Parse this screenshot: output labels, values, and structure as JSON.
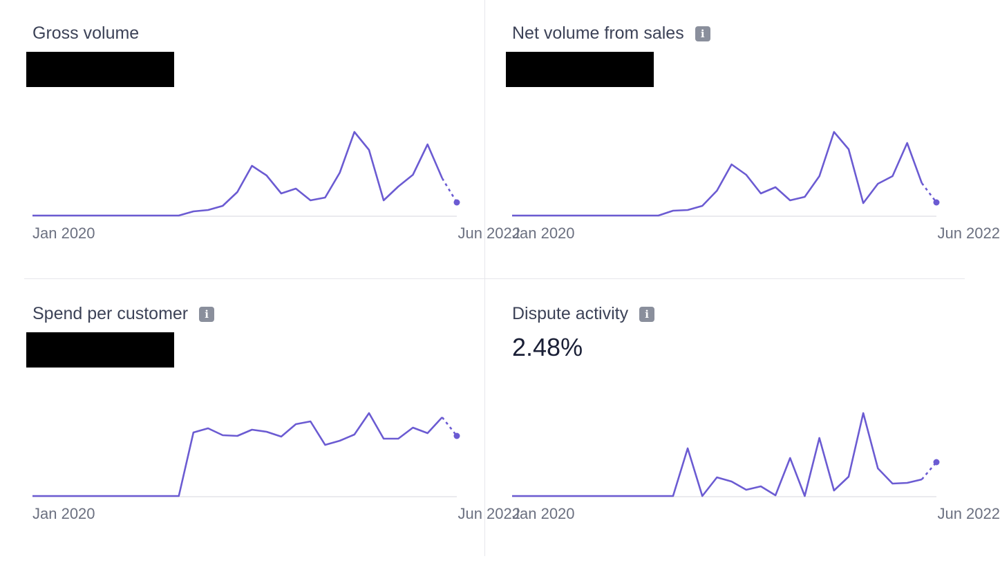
{
  "colors": {
    "line": "#6b5bd2",
    "baseline": "#e3e4e8",
    "info_icon": "#8a8f9c"
  },
  "chart_data": [
    {
      "type": "line",
      "title": "Gross volume",
      "value": "",
      "value_redacted": true,
      "info_icon": false,
      "x_start_label": "Jan 2020",
      "x_end_label": "Jun 2022",
      "values": [
        0,
        0,
        0,
        0,
        0,
        0,
        0,
        0,
        0,
        0,
        0,
        6,
        8,
        14,
        34,
        72,
        58,
        32,
        39,
        22,
        26,
        62,
        121,
        95,
        22,
        42,
        59,
        103,
        54,
        19
      ],
      "last_segment": "dashed",
      "last_point_marker": true
    },
    {
      "type": "line",
      "title": "Net volume from sales",
      "value": "",
      "value_redacted": true,
      "info_icon": true,
      "x_start_label": "Jan 2020",
      "x_end_label": "Jun 2022",
      "values": [
        0,
        0,
        0,
        0,
        0,
        0,
        0,
        0,
        0,
        0,
        0,
        7,
        8,
        14,
        36,
        74,
        59,
        32,
        41,
        22,
        27,
        57,
        121,
        96,
        18,
        46,
        57,
        105,
        47,
        19
      ],
      "last_segment": "dashed",
      "last_point_marker": true
    },
    {
      "type": "line",
      "title": "Spend per customer",
      "value": "",
      "value_redacted": true,
      "info_icon": true,
      "x_start_label": "Jan 2020",
      "x_end_label": "Jun 2022",
      "values": [
        0,
        0,
        0,
        0,
        0,
        0,
        0,
        0,
        0,
        0,
        0,
        92,
        98,
        88,
        87,
        96,
        93,
        86,
        104,
        108,
        74,
        80,
        89,
        120,
        83,
        83,
        99,
        91,
        114,
        87
      ],
      "last_segment": "dashed",
      "last_point_marker": true
    },
    {
      "type": "line",
      "title": "Dispute activity",
      "value": "2.48%",
      "value_redacted": false,
      "info_icon": true,
      "x_start_label": "Jan 2020",
      "x_end_label": "Jun 2022",
      "values": [
        0,
        0,
        0,
        0,
        0,
        0,
        0,
        0,
        0,
        0,
        0,
        0,
        69,
        0,
        27,
        21,
        9,
        14,
        1,
        55,
        0,
        84,
        8,
        28,
        120,
        40,
        18,
        19,
        24,
        49
      ],
      "last_segment": "dashed",
      "last_point_marker": true
    }
  ]
}
